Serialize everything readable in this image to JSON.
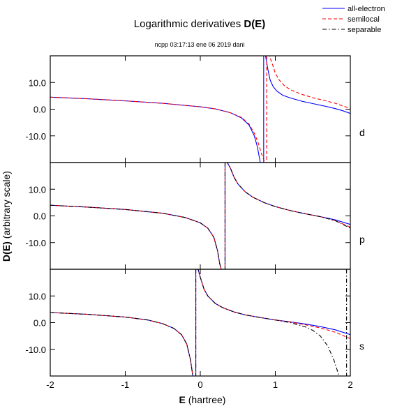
{
  "title_prefix": "Logarithmic derivatives ",
  "title_bold": "D(E)",
  "subtitle": "ncpp 03:17:13 ene 06 2019 dani",
  "legend": [
    {
      "label": "all-electron",
      "color": "#0000ff",
      "dash": "solid"
    },
    {
      "label": "semilocal",
      "color": "#ff0000",
      "dash": "dashed"
    },
    {
      "label": "separable",
      "color": "#000000",
      "dash": "dashdot"
    }
  ],
  "xlabel_bold": "E",
  "xlabel_rest": " (hartree)",
  "ylabel_bold": "D(E)",
  "ylabel_rest": "  (arbitrary scale)",
  "chart_data": {
    "type": "line",
    "xlim": [
      -2,
      2
    ],
    "ylim": [
      -20,
      20
    ],
    "xticks": [
      -2,
      -1,
      0,
      1,
      2
    ],
    "xtick_labels": [
      "-2",
      "-1",
      "0",
      "1",
      "2"
    ],
    "yticks": [
      10,
      0,
      -10
    ],
    "ytick_labels": [
      "10.0",
      "0.0",
      "-10.0"
    ],
    "grid": false,
    "legend_position": "top-right",
    "panels": [
      {
        "label": "d",
        "series": [
          {
            "name": "all-electron",
            "x": [
              -2.0,
              -1.5,
              -1.0,
              -0.5,
              0.0,
              0.2,
              0.4,
              0.55,
              0.65,
              0.72,
              0.76,
              0.8,
              0.83,
              0.845
            ],
            "y": [
              4.5,
              3.9,
              3.1,
              2.2,
              0.9,
              0.1,
              -1.3,
              -3.3,
              -6.0,
              -10.0,
              -14.0,
              -20.0,
              null,
              null
            ],
            "asymptote": 0.845,
            "x2": [
              0.845,
              0.87,
              0.9,
              0.93,
              0.97,
              1.02,
              1.1,
              1.2,
              1.35,
              1.5,
              1.65,
              1.8,
              1.9,
              2.0
            ],
            "y2": [
              20,
              20,
              15.0,
              11.0,
              8.5,
              6.8,
              5.2,
              4.2,
              3.0,
              2.1,
              1.2,
              0.2,
              -0.6,
              -1.6
            ]
          },
          {
            "name": "semilocal",
            "x": [
              -2.0,
              -1.5,
              -1.0,
              -0.5,
              0.0,
              0.2,
              0.4,
              0.55,
              0.65,
              0.72,
              0.77,
              0.82,
              0.86,
              0.885
            ],
            "y": [
              4.5,
              3.9,
              3.1,
              2.2,
              0.9,
              0.1,
              -1.3,
              -3.1,
              -5.6,
              -9.0,
              -12.5,
              -17.0,
              -20.0,
              null
            ],
            "asymptote": 0.885,
            "x2": [
              0.885,
              0.92,
              0.96,
              1.0,
              1.05,
              1.12,
              1.2,
              1.35,
              1.5,
              1.65,
              1.8,
              1.9,
              2.0
            ],
            "y2": [
              20,
              20,
              17.0,
              13.5,
              11.0,
              8.8,
              7.3,
              5.6,
              4.3,
              3.3,
              2.2,
              1.2,
              0.3
            ]
          }
        ]
      },
      {
        "label": "p",
        "series": [
          {
            "name": "all-electron",
            "x": [
              -2.0,
              -1.5,
              -1.0,
              -0.5,
              -0.2,
              0.0,
              0.1,
              0.18,
              0.23,
              0.26,
              0.28
            ],
            "y": [
              4.0,
              3.3,
              2.4,
              1.0,
              -0.6,
              -2.6,
              -4.6,
              -8.0,
              -13.0,
              -18.0,
              -20.0
            ],
            "asymptote": 0.33,
            "x2": [
              0.33,
              0.36,
              0.4,
              0.45,
              0.5,
              0.6,
              0.7,
              0.85,
              1.0,
              1.2,
              1.4,
              1.6,
              1.8,
              2.0
            ],
            "y2": [
              20,
              20,
              18.0,
              14.5,
              12.0,
              9.0,
              7.0,
              5.0,
              3.5,
              2.0,
              0.8,
              -0.3,
              -1.5,
              -3.2
            ]
          },
          {
            "name": "semilocal",
            "x": [
              -2.0,
              -1.5,
              -1.0,
              -0.5,
              -0.2,
              0.0,
              0.1,
              0.18,
              0.23,
              0.26,
              0.28
            ],
            "y": [
              4.0,
              3.3,
              2.4,
              1.0,
              -0.6,
              -2.6,
              -4.6,
              -8.0,
              -13.0,
              -18.0,
              -20.0
            ],
            "asymptote": 0.33,
            "x2": [
              0.33,
              0.36,
              0.4,
              0.45,
              0.5,
              0.6,
              0.7,
              0.85,
              1.0,
              1.2,
              1.4,
              1.6,
              1.8,
              2.0
            ],
            "y2": [
              20,
              20,
              18.0,
              14.5,
              12.0,
              9.0,
              7.0,
              5.0,
              3.5,
              2.0,
              0.8,
              -0.3,
              -1.8,
              -4.2
            ]
          },
          {
            "name": "separable",
            "x": [
              -2.0,
              -1.5,
              -1.0,
              -0.5,
              -0.2,
              0.0,
              0.1,
              0.18,
              0.23,
              0.26,
              0.28
            ],
            "y": [
              4.0,
              3.3,
              2.4,
              1.0,
              -0.6,
              -2.6,
              -4.6,
              -8.0,
              -13.0,
              -18.0,
              -20.0
            ],
            "asymptote": 0.33,
            "x2": [
              0.33,
              0.36,
              0.4,
              0.45,
              0.5,
              0.6,
              0.7,
              0.85,
              1.0,
              1.2,
              1.4,
              1.6,
              1.8,
              2.0
            ],
            "y2": [
              20,
              20,
              18.0,
              14.5,
              12.0,
              9.0,
              7.0,
              5.0,
              3.5,
              2.0,
              0.8,
              -0.3,
              -1.8,
              -4.6
            ]
          }
        ]
      },
      {
        "label": "s",
        "series": [
          {
            "name": "all-electron",
            "x": [
              -2.0,
              -1.5,
              -1.0,
              -0.7,
              -0.5,
              -0.35,
              -0.25,
              -0.18,
              -0.13,
              -0.1
            ],
            "y": [
              3.8,
              3.1,
              2.1,
              1.0,
              -0.4,
              -2.2,
              -4.5,
              -8.0,
              -14.0,
              -20.0
            ],
            "asymptote": -0.06,
            "x2": [
              -0.06,
              -0.03,
              0.0,
              0.05,
              0.1,
              0.2,
              0.3,
              0.45,
              0.6,
              0.8,
              1.0,
              1.2,
              1.4,
              1.6,
              1.8,
              2.0
            ],
            "y2": [
              20,
              20,
              17.0,
              12.5,
              10.0,
              7.2,
              5.6,
              4.0,
              2.9,
              1.9,
              1.0,
              0.3,
              -0.5,
              -1.5,
              -2.7,
              -4.5
            ]
          },
          {
            "name": "semilocal",
            "x": [
              -2.0,
              -1.5,
              -1.0,
              -0.7,
              -0.5,
              -0.35,
              -0.25,
              -0.18,
              -0.13,
              -0.1
            ],
            "y": [
              3.8,
              3.1,
              2.1,
              1.0,
              -0.4,
              -2.2,
              -4.5,
              -8.0,
              -14.0,
              -20.0
            ],
            "asymptote": -0.06,
            "x2": [
              -0.06,
              -0.03,
              0.0,
              0.05,
              0.1,
              0.2,
              0.3,
              0.45,
              0.6,
              0.8,
              1.0,
              1.2,
              1.4,
              1.6,
              1.8,
              2.0
            ],
            "y2": [
              20,
              20,
              17.0,
              12.5,
              10.0,
              7.2,
              5.6,
              4.0,
              2.9,
              1.9,
              1.0,
              0.2,
              -0.8,
              -2.0,
              -3.6,
              -6.0
            ]
          },
          {
            "name": "separable",
            "x": [
              -2.0,
              -1.5,
              -1.0,
              -0.7,
              -0.5,
              -0.35,
              -0.25,
              -0.18,
              -0.13,
              -0.1
            ],
            "y": [
              3.8,
              3.1,
              2.1,
              1.0,
              -0.4,
              -2.2,
              -4.5,
              -8.0,
              -14.0,
              -20.0
            ],
            "asymptote": -0.06,
            "x2": [
              -0.06,
              -0.03,
              0.0,
              0.05,
              0.1,
              0.2,
              0.3,
              0.45,
              0.6,
              0.8,
              1.0,
              1.2,
              1.4,
              1.5,
              1.6,
              1.7,
              1.78,
              1.85
            ],
            "y2": [
              20,
              20,
              17.0,
              12.5,
              10.0,
              7.2,
              5.6,
              4.0,
              2.9,
              1.9,
              1.0,
              0.0,
              -1.6,
              -2.9,
              -5.0,
              -8.8,
              -14.0,
              -20.0
            ],
            "asymptote2": 1.95
          }
        ]
      }
    ]
  }
}
